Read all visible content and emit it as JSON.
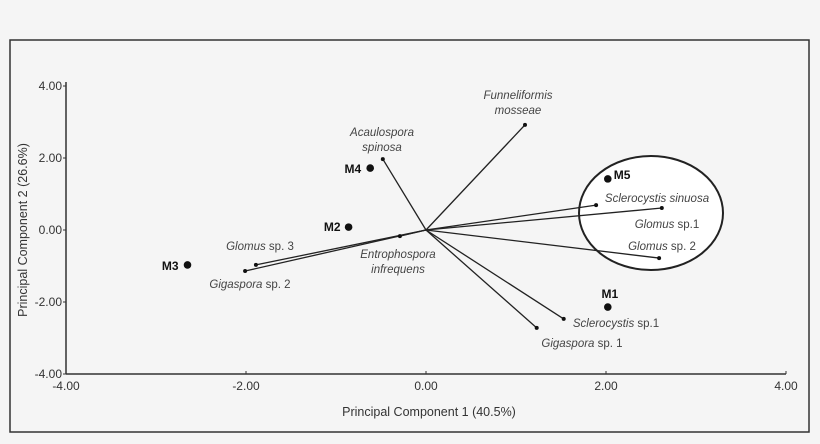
{
  "chart_data": {
    "type": "scatter",
    "subtype": "pca-biplot",
    "xlabel": "Principal Component 1 (40.5%)",
    "ylabel": "Principal Component  2 (26.6%)",
    "xlim": [
      -4,
      4
    ],
    "ylim": [
      -4,
      4
    ],
    "xticks": [
      "-4.00",
      "-2.00",
      "0.00",
      "2.00",
      "4.00"
    ],
    "yticks": [
      "4.00",
      "2.00",
      "0.00",
      "-2.00",
      "-4.00"
    ],
    "grid": false,
    "sites": [
      {
        "name": "M1",
        "x": 2.02,
        "y": -2.14
      },
      {
        "name": "M2",
        "x": -0.86,
        "y": 0.08
      },
      {
        "name": "M3",
        "x": -2.65,
        "y": -0.97
      },
      {
        "name": "M4",
        "x": -0.62,
        "y": 1.72
      },
      {
        "name": "M5",
        "x": 2.02,
        "y": 1.42
      }
    ],
    "vectors": [
      {
        "genus": "Funneliformis",
        "rest": "mosseae",
        "x": 1.1,
        "y": 2.92
      },
      {
        "genus": "Acaulospora",
        "rest": "spinosa",
        "x": -0.48,
        "y": 1.97
      },
      {
        "genus": "Sclerocystis sinuosa",
        "rest": "",
        "x": 1.89,
        "y": 0.69
      },
      {
        "genus": "Glomus",
        "rest": " sp.1",
        "x": 2.62,
        "y": 0.61
      },
      {
        "genus": "Glomus",
        "rest": " sp. 2",
        "x": 2.59,
        "y": -0.78
      },
      {
        "genus": "Sclerocystis",
        "rest": " sp.1",
        "x": 1.53,
        "y": -2.47
      },
      {
        "genus": "Gigaspora",
        "rest": " sp. 1",
        "x": 1.23,
        "y": -2.72
      },
      {
        "genus": "Glomus",
        "rest": " sp. 3",
        "x": -1.89,
        "y": -0.97
      },
      {
        "genus": "Gigaspora",
        "rest": " sp. 2",
        "x": -2.01,
        "y": -1.14
      },
      {
        "genus": "Entrophospora",
        "rest": "infrequens",
        "x": -0.29,
        "y": -0.17
      }
    ],
    "grouping_ellipse": {
      "encloses": [
        "M5",
        "Sclerocystis sinuosa",
        "Glomus sp.1",
        "Glomus sp. 2"
      ]
    }
  }
}
